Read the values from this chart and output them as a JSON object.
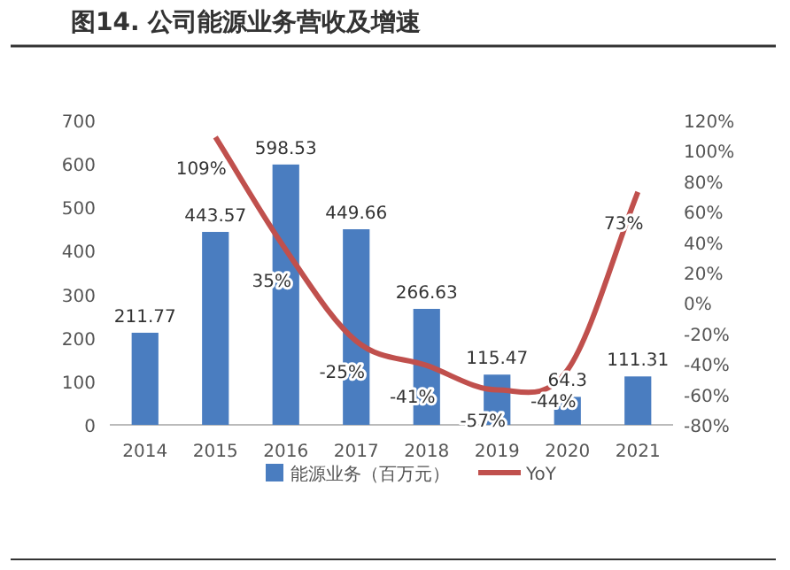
{
  "chart_data": {
    "type": "bar",
    "title": "图14. 公司能源业务营收及增速",
    "categories": [
      "2014",
      "2015",
      "2016",
      "2017",
      "2018",
      "2019",
      "2020",
      "2021"
    ],
    "series": [
      {
        "name": "能源业务（百万元）",
        "color": "#4a7dc0",
        "values": [
          211.77,
          443.57,
          598.53,
          449.66,
          266.63,
          115.47,
          64.3,
          111.31
        ]
      },
      {
        "name": "YoY",
        "type": "line",
        "axis": "y2",
        "color": "#c0504d",
        "values": [
          null,
          109,
          35,
          -25,
          -41,
          -57,
          -44,
          73
        ],
        "value_labels": [
          null,
          "109%",
          "35%",
          "-25%",
          "-41%",
          "-57%",
          "-44%",
          "73%"
        ]
      }
    ],
    "data_labels": true,
    "ylim": [
      0,
      700
    ],
    "yticks": [
      0,
      100,
      200,
      300,
      400,
      500,
      600,
      700
    ],
    "y2lim": [
      -80,
      120
    ],
    "y2ticks": [
      {
        "value": -80,
        "label": "-80%"
      },
      {
        "value": -60,
        "label": "-60%"
      },
      {
        "value": -40,
        "label": "-40%"
      },
      {
        "value": -20,
        "label": "-20%"
      },
      {
        "value": 0,
        "label": "0%"
      },
      {
        "value": 20,
        "label": "20%"
      },
      {
        "value": 40,
        "label": "40%"
      },
      {
        "value": 60,
        "label": "60%"
      },
      {
        "value": 80,
        "label": "80%"
      },
      {
        "value": 100,
        "label": "100%"
      },
      {
        "value": 120,
        "label": "120%"
      }
    ],
    "grid": false,
    "legend": "bottom"
  }
}
